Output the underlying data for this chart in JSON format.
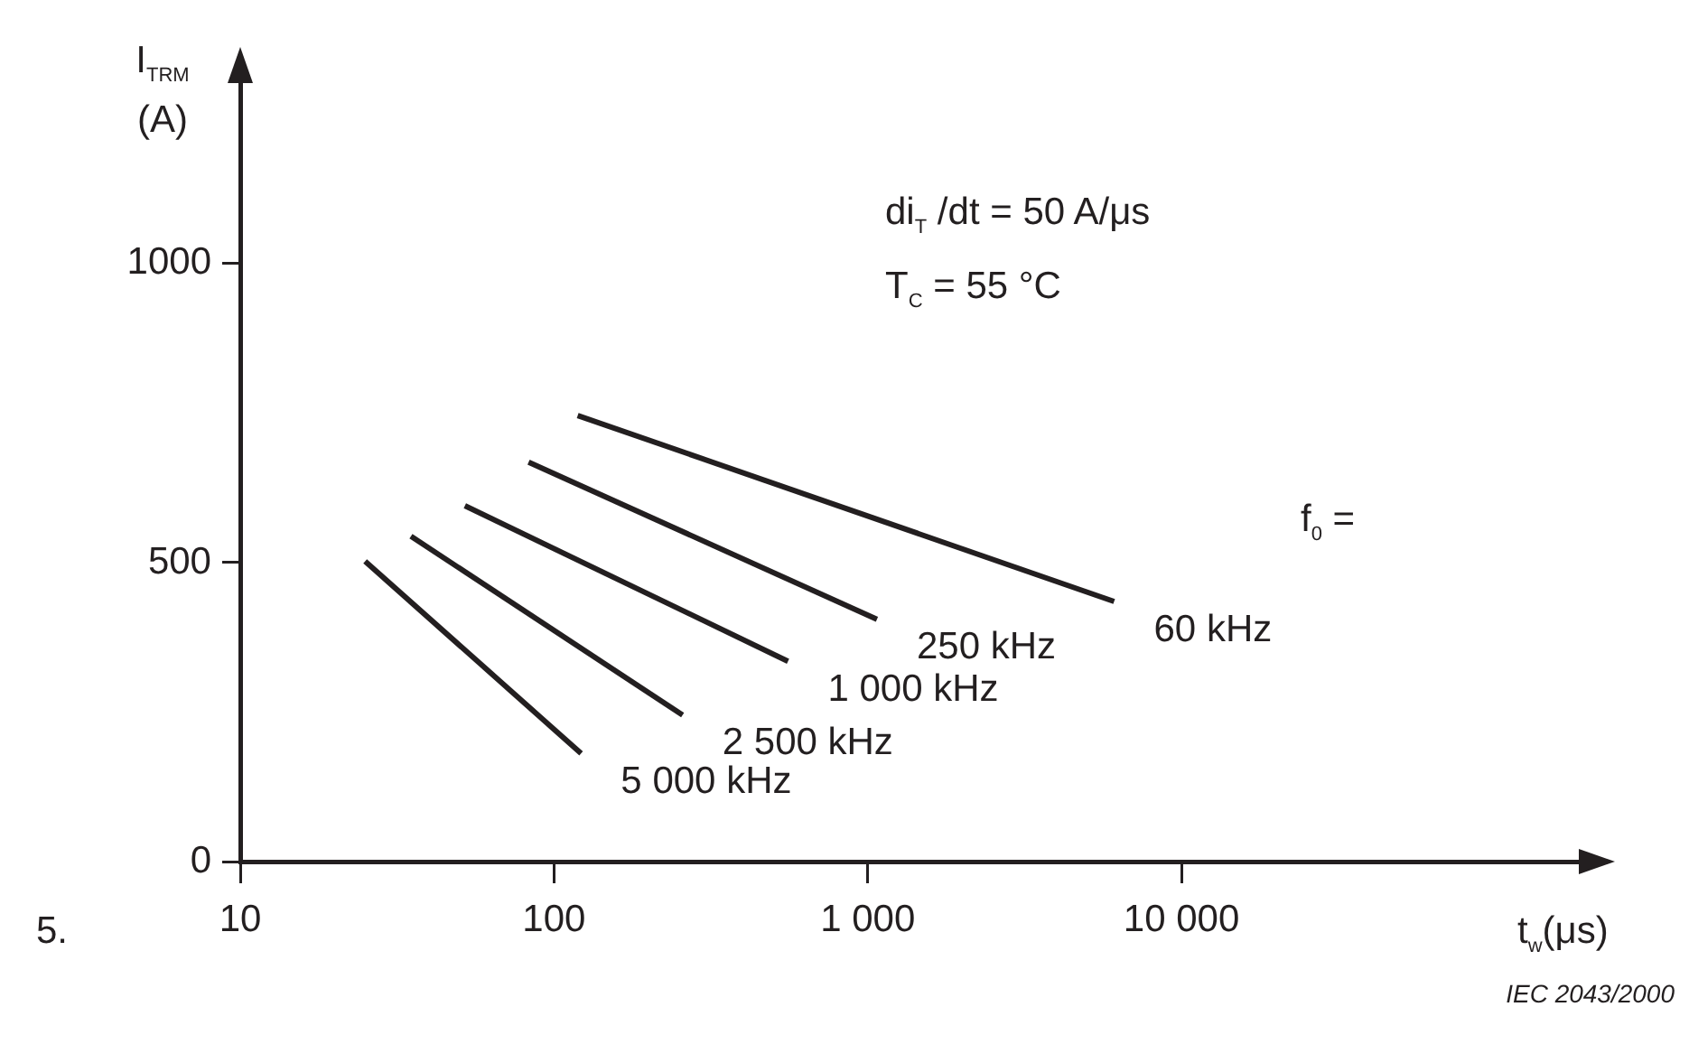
{
  "chart_data": {
    "type": "line",
    "xlabel": "t$_{w}$(μs)",
    "ylabel": "I$_{TRM}$ (A)",
    "log": "x",
    "grid": false,
    "legend": false,
    "marker": "none",
    "line_style": "solid",
    "xlim": [
      10,
      200000
    ],
    "xticks": [
      10,
      100,
      {
        "value": 1000,
        "label": "1 000"
      },
      {
        "value": 10000,
        "label": "10 000"
      }
    ],
    "ylim": [
      0,
      1320
    ],
    "yticks": [
      0,
      500,
      1000
    ],
    "series": [
      {
        "name": "60 kHz",
        "color": "#231f20",
        "x": [
          119,
          6100
        ],
        "values": [
          746,
          435
        ]
      },
      {
        "name": "250 kHz",
        "color": "#231f20",
        "x": [
          83,
          1070
        ],
        "values": [
          668,
          405
        ]
      },
      {
        "name": "1 000 kHz",
        "color": "#231f20",
        "x": [
          52,
          557
        ],
        "values": [
          595,
          335
        ]
      },
      {
        "name": "2 500 kHz",
        "color": "#231f20",
        "x": [
          35,
          257
        ],
        "values": [
          544,
          245
        ]
      },
      {
        "name": "5 000 kHz",
        "color": "#231f20",
        "x": [
          25,
          122
        ],
        "values": [
          502,
          181
        ]
      }
    ],
    "annotations": [
      "di$_{T}$ /dt = 50 A/μs",
      "T$_{C}$ = 55 °C",
      "f$_{0}$ =",
      "5.",
      "IEC 2043/2000"
    ]
  }
}
